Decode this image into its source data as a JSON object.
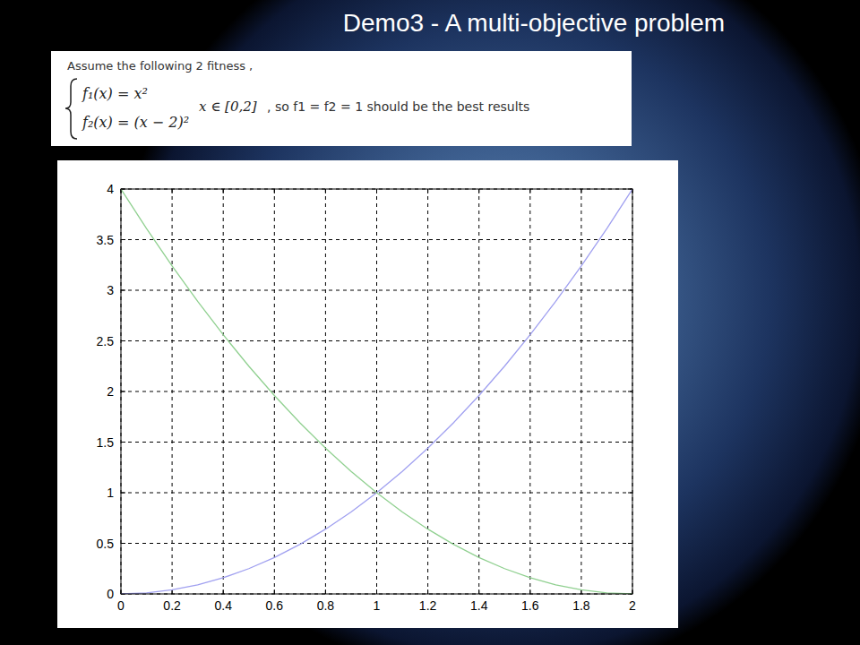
{
  "chart_data": {
    "type": "line",
    "title": "Demo3 - A multi-objective problem",
    "annotations": [
      "Assume the following 2 fitness ,",
      "f₁(x) = x²",
      "f₂(x) = (x − 2)²",
      "x ∈ [0,2]",
      ", so f1 = f2 = 1 should be the best results"
    ],
    "x": [
      0,
      0.1,
      0.2,
      0.3,
      0.4,
      0.5,
      0.6,
      0.7,
      0.8,
      0.9,
      1,
      1.1,
      1.2,
      1.3,
      1.4,
      1.5,
      1.6,
      1.7,
      1.8,
      1.9,
      2
    ],
    "series": [
      {
        "color": "#a0a0f0",
        "values": [
          0,
          0.01,
          0.04,
          0.09,
          0.16,
          0.25,
          0.36,
          0.49,
          0.64,
          0.81,
          1,
          1.21,
          1.44,
          1.69,
          1.96,
          2.25,
          2.56,
          2.89,
          3.24,
          3.61,
          4
        ]
      },
      {
        "color": "#90d090",
        "values": [
          4,
          3.61,
          3.24,
          2.89,
          2.56,
          2.25,
          1.96,
          1.69,
          1.44,
          1.21,
          1,
          0.81,
          0.64,
          0.49,
          0.36,
          0.25,
          0.16,
          0.09,
          0.04,
          0.01,
          0
        ]
      }
    ],
    "xlim": [
      0,
      2
    ],
    "ylim": [
      0,
      4
    ],
    "xticks": [
      0,
      0.2,
      0.4,
      0.6,
      0.8,
      1,
      1.2,
      1.4,
      1.6,
      1.8,
      2
    ],
    "yticks": [
      0,
      0.5,
      1,
      1.5,
      2,
      2.5,
      3,
      3.5,
      4
    ],
    "grid": true
  }
}
